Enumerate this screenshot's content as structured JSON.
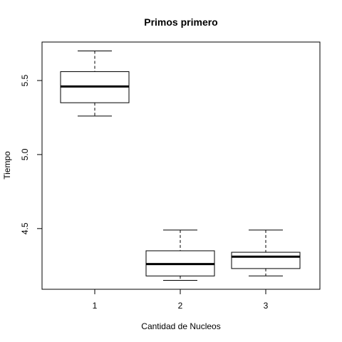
{
  "chart_data": {
    "type": "boxplot",
    "title": "Primos primero",
    "xlabel": "Cantidad de Nucleos",
    "ylabel": "Tiempo",
    "categories": [
      "1",
      "2",
      "3"
    ],
    "ylim": [
      4.09,
      5.76
    ],
    "y_ticks": [
      4.5,
      5.0,
      5.5
    ],
    "y_tick_labels": [
      "4.5",
      "5.0",
      "5.5"
    ],
    "grid": false,
    "legend": "none",
    "boxes": [
      {
        "category": "1",
        "min": 5.26,
        "q1": 5.35,
        "median": 5.46,
        "q3": 5.56,
        "max": 5.7
      },
      {
        "category": "2",
        "min": 4.15,
        "q1": 4.18,
        "median": 4.26,
        "q3": 4.35,
        "max": 4.49
      },
      {
        "category": "3",
        "min": 4.18,
        "q1": 4.23,
        "median": 4.31,
        "q3": 4.34,
        "max": 4.49
      }
    ]
  }
}
